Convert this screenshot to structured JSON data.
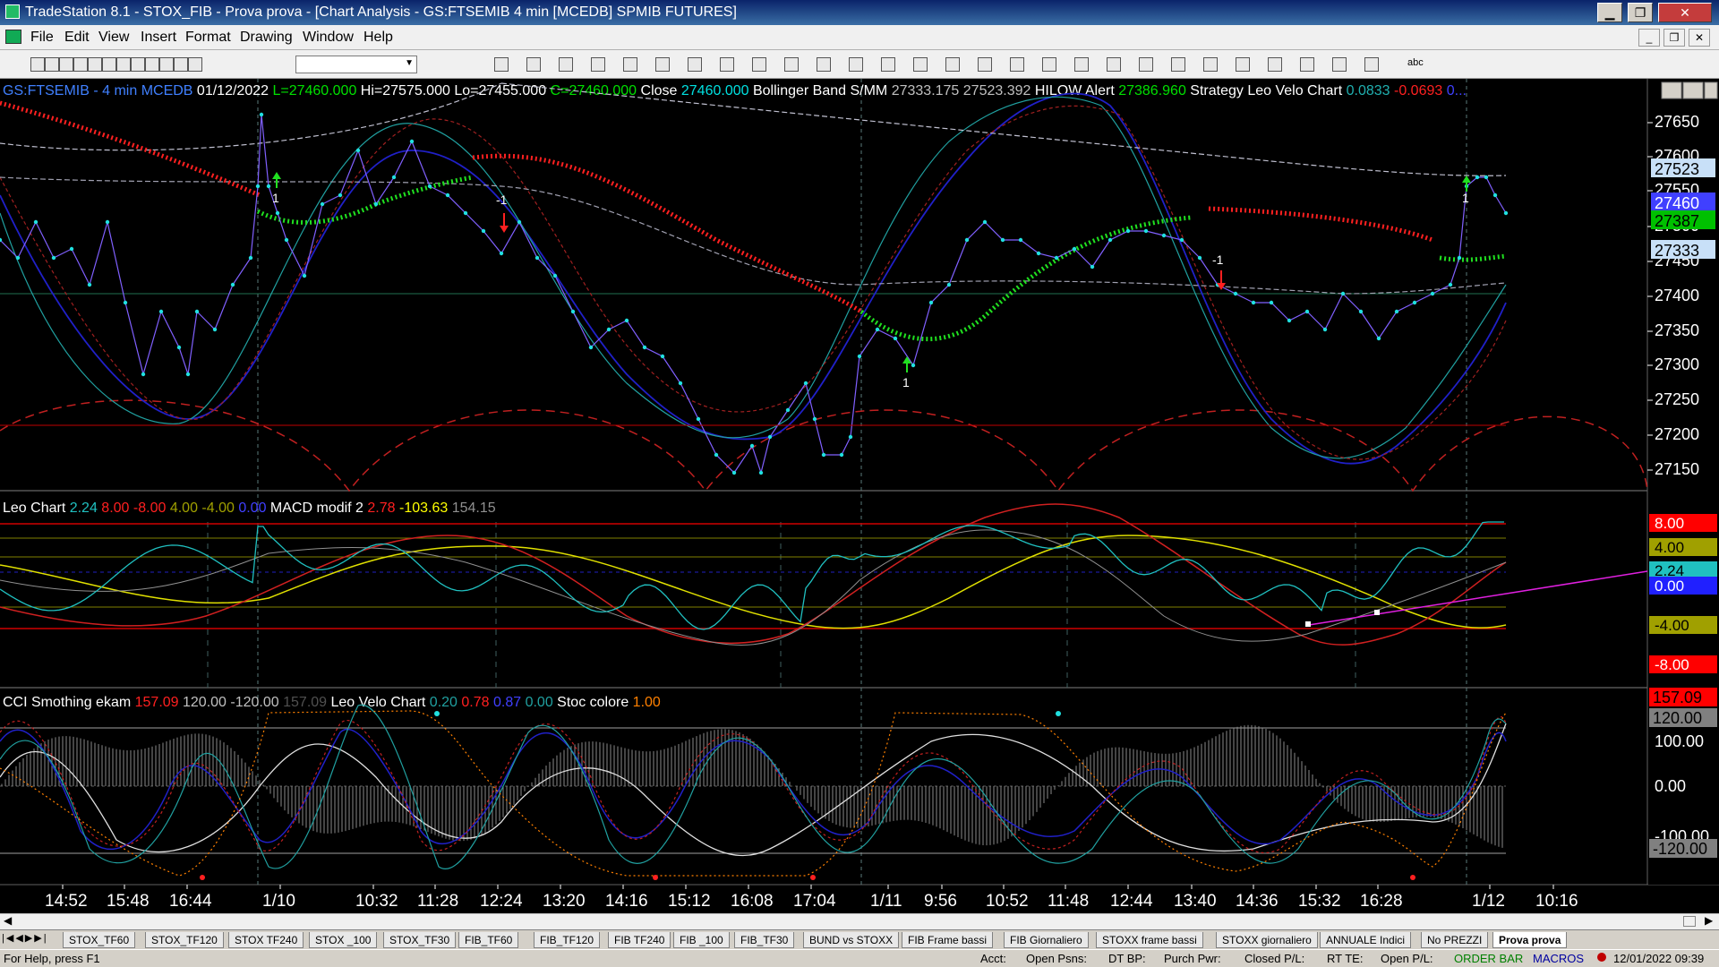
{
  "window": {
    "title": "TradeStation 8.1 - STOX_FIB - Prova prova - [Chart Analysis - GS:FTSEMIB  4 min  [MCEDB] SPMIB FUTURES]",
    "controls": [
      "▁",
      "❐",
      "✕"
    ]
  },
  "menu": {
    "items": [
      "File",
      "Edit",
      "View",
      "Insert",
      "Format",
      "Drawing",
      "Window",
      "Help"
    ],
    "mdi_controls": [
      "_",
      "❐",
      "✕"
    ]
  },
  "toolbar": {
    "combo_value": "",
    "icons": [
      "new-icon",
      "open-icon",
      "save-icon",
      "folder-icon",
      "print-icon",
      "print-preview-icon",
      "chart-icon",
      "grid-icon",
      "lock-icon",
      "globe-icon",
      "find-icon",
      "window-icon",
      "layout-icon",
      "bars-icon",
      "indicator-icon",
      "strategy-icon",
      "alert-icon",
      "format-icon",
      "workspace-icon",
      "refresh-icon",
      "data-icon",
      "candle-icon",
      "bar-style-icon",
      "line-style-icon",
      "zoom-in-icon",
      "zoom-out-icon",
      "pointer-icon",
      "cursor-icon",
      "crosshair-icon",
      "delete-icon",
      "trendline-icon",
      "hline-icon",
      "vline-icon",
      "fib-icon",
      "channel-icon",
      "arc-icon",
      "gann-icon",
      "arrow-icon",
      "pitchfork-icon",
      "text-icon"
    ],
    "text_tool_label": "abc"
  },
  "chart": {
    "price_header": [
      {
        "text": "GS:FTSEMIB - 4 min",
        "color": "#4080ff"
      },
      {
        "text": "MCEDB",
        "color": "#4080ff"
      },
      {
        "text": "01/12/2022",
        "color": "#ffffff"
      },
      {
        "text": "L=27460.000",
        "color": "#00e000"
      },
      {
        "text": "Hi=27575.000",
        "color": "#ffffff"
      },
      {
        "text": "Lo=27455.000",
        "color": "#ffffff"
      },
      {
        "text": "C=27460.000",
        "color": "#00e000"
      },
      {
        "text": "Close",
        "color": "#ffffff"
      },
      {
        "text": "27460.000",
        "color": "#00e0e0"
      },
      {
        "text": "Bollinger Band S/MM",
        "color": "#ffffff"
      },
      {
        "text": "27333.175",
        "color": "#c0c0c0"
      },
      {
        "text": "27523.392",
        "color": "#c0c0c0"
      },
      {
        "text": "HILOW Alert",
        "color": "#ffffff"
      },
      {
        "text": "27386.960",
        "color": "#00e000"
      },
      {
        "text": "Strategy",
        "color": "#ffffff"
      },
      {
        "text": "Leo Velo Chart",
        "color": "#ffffff"
      },
      {
        "text": "0.0833",
        "color": "#20b0b0"
      },
      {
        "text": "-0.0693",
        "color": "#ff2020"
      },
      {
        "text": "0...",
        "color": "#4040ff"
      }
    ],
    "leo_header": [
      {
        "text": "Leo Chart",
        "color": "#ffffff"
      },
      {
        "text": "2.24",
        "color": "#20c0c0"
      },
      {
        "text": "8.00",
        "color": "#ff2020"
      },
      {
        "text": "-8.00",
        "color": "#ff2020"
      },
      {
        "text": "4.00",
        "color": "#a0a000"
      },
      {
        "text": "-4.00",
        "color": "#a0a000"
      },
      {
        "text": "0.00",
        "color": "#4040ff"
      },
      {
        "text": "MACD modif 2",
        "color": "#ffffff"
      },
      {
        "text": "2.78",
        "color": "#ff2020"
      },
      {
        "text": "-103.63",
        "color": "#ffff00"
      },
      {
        "text": "154.15",
        "color": "#909090"
      }
    ],
    "cci_header": [
      {
        "text": "CCI Smothing ekam",
        "color": "#ffffff"
      },
      {
        "text": "157.09",
        "color": "#ff2020"
      },
      {
        "text": "120.00",
        "color": "#c0c0c0"
      },
      {
        "text": "-120.00",
        "color": "#c0c0c0"
      },
      {
        "text": "157.09",
        "color": "#505050"
      },
      {
        "text": "Leo Velo Chart",
        "color": "#ffffff"
      },
      {
        "text": "0.20",
        "color": "#20a0a0"
      },
      {
        "text": "0.78",
        "color": "#ff2020"
      },
      {
        "text": "0.87",
        "color": "#4040ff"
      },
      {
        "text": "0.00",
        "color": "#20a0a0"
      },
      {
        "text": "Stoc colore",
        "color": "#ffffff"
      },
      {
        "text": "1.00",
        "color": "#ff8000"
      }
    ],
    "price_axis_ticks": [
      "27650",
      "27600",
      "27550",
      "27500",
      "27450",
      "27400",
      "27350",
      "27300",
      "27250",
      "27200",
      "27150"
    ],
    "price_axis_badges": [
      {
        "text": "27523",
        "bg": "#c8e0f8",
        "fg": "#000000"
      },
      {
        "text": "27460",
        "bg": "#4040ff",
        "fg": "#ffffff"
      },
      {
        "text": "27387",
        "bg": "#00c000",
        "fg": "#000000"
      },
      {
        "text": "27333",
        "bg": "#c8e0f8",
        "fg": "#000000"
      }
    ],
    "leo_axis_badges": [
      {
        "text": "8.00",
        "bg": "#ff0000",
        "fg": "#ffffff"
      },
      {
        "text": "4.00",
        "bg": "#a0a000",
        "fg": "#000000"
      },
      {
        "text": "2.24",
        "bg": "#20c0c0",
        "fg": "#000000"
      },
      {
        "text": "0.00",
        "bg": "#2020ff",
        "fg": "#ffffff"
      },
      {
        "text": "-4.00",
        "bg": "#a0a000",
        "fg": "#000000"
      },
      {
        "text": "-8.00",
        "bg": "#ff0000",
        "fg": "#ffffff"
      }
    ],
    "cci_axis_labels": [
      "100.00",
      "0.00",
      "-100.00"
    ],
    "cci_axis_badges": [
      {
        "text": "157.09",
        "bg": "#ff0000",
        "fg": "#000000"
      },
      {
        "text": "120.00",
        "bg": "#808080",
        "fg": "#000000"
      },
      {
        "text": "-120.00",
        "bg": "#808080",
        "fg": "#000000"
      }
    ],
    "time_axis": [
      "14:52",
      "15:48",
      "16:44",
      "1/10",
      "10:32",
      "11:28",
      "12:24",
      "13:20",
      "14:16",
      "15:12",
      "16:08",
      "17:04",
      "1/11",
      "9:56",
      "10:52",
      "11:48",
      "12:44",
      "13:40",
      "14:36",
      "15:32",
      "16:28",
      "1/12",
      "10:16"
    ],
    "trade_markers": [
      {
        "type": "buy",
        "label": "1"
      },
      {
        "type": "sell",
        "label": "-1"
      },
      {
        "type": "buy",
        "label": "1"
      },
      {
        "type": "sell",
        "label": "-1"
      },
      {
        "type": "buy",
        "label": "1"
      }
    ]
  },
  "tabs": {
    "items": [
      "STOX_TF60",
      "STOX_TF120",
      "STOX TF240",
      "STOX _100",
      "STOX_TF30",
      "FIB_TF60",
      "FIB_TF120",
      "FIB TF240",
      "FIB _100",
      "FIB_TF30",
      "BUND vs STOXX",
      "FIB Frame bassi",
      "FIB Giornaliero",
      "STOXX frame bassi",
      "STOXX giornaliero",
      "ANNUALE Indici",
      "No PREZZI",
      "Prova prova"
    ],
    "active": "Prova prova"
  },
  "status": {
    "help": "For Help, press F1",
    "acct": "Acct:",
    "open_psns": "Open Psns:",
    "dt_bp": "DT BP:",
    "purch_pwr": "Purch Pwr:",
    "closed_pl": "Closed P/L:",
    "rt_te": "RT TE:",
    "open_pl": "Open P/L:",
    "order_bar": "ORDER BAR",
    "macros": "MACROS",
    "datetime": "12/01/2022 09:39"
  },
  "colors": {
    "price_line": "#20e0e0",
    "boll_band": "#c0c0d0",
    "hilo_red": "#ff2020",
    "hilo_green": "#20e020",
    "osc_blue": "#2020d0",
    "osc_teal": "#20a0a0",
    "macd_yellow": "#e0e000",
    "macd_red": "#e02020",
    "trend_magenta": "#e020e0",
    "arc_red": "#c02020"
  }
}
